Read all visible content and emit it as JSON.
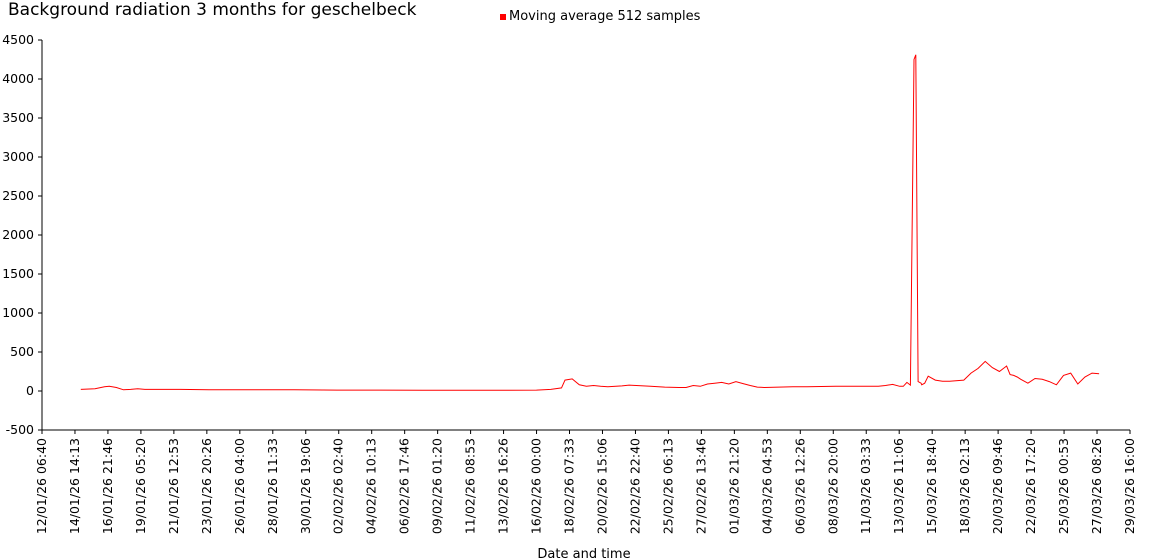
{
  "chart_data": {
    "type": "line",
    "title": "Background radiation 3 months for geschelbeck",
    "xlabel": "Date and time",
    "ylabel": "",
    "ylim": [
      -500,
      4500
    ],
    "yticks": [
      -500,
      0,
      500,
      1000,
      1500,
      2000,
      2500,
      3000,
      3500,
      4000,
      4500
    ],
    "xticks": [
      "12/01/26 06:40",
      "14/01/26 14:13",
      "16/01/26 21:46",
      "19/01/26 05:20",
      "21/01/26 12:53",
      "23/01/26 20:26",
      "26/01/26 04:00",
      "28/01/26 11:33",
      "30/01/26 19:06",
      "02/02/26 02:40",
      "04/02/26 10:13",
      "06/02/26 17:46",
      "09/02/26 01:20",
      "11/02/26 08:53",
      "13/02/26 16:26",
      "16/02/26 00:00",
      "18/02/26 07:33",
      "20/02/26 15:06",
      "22/02/26 22:40",
      "25/02/26 06:13",
      "27/02/26 13:46",
      "01/03/26 21:20",
      "04/03/26 04:53",
      "06/03/26 12:26",
      "08/03/26 20:00",
      "11/03/26 03:33",
      "13/03/26 11:06",
      "15/03/26 18:40",
      "18/03/26 02:13",
      "20/03/26 09:46",
      "22/03/26 17:20",
      "25/03/26 00:53",
      "27/03/26 08:26",
      "29/03/26 16:00"
    ],
    "grid": false,
    "legend_position": "top-center",
    "series": [
      {
        "name": "Moving average 512 samples",
        "color": "#ff0000",
        "x": [
          "15/01/26 00:00",
          "16/01/26 00:00",
          "16/01/26 16:00",
          "17/01/26 00:00",
          "17/01/26 12:00",
          "18/01/26 00:00",
          "18/01/26 12:00",
          "19/01/26 00:00",
          "19/01/26 12:00",
          "20/01/26 00:00",
          "22/01/26 00:00",
          "24/01/26 00:00",
          "27/01/26 00:00",
          "30/01/26 00:00",
          "02/02/26 00:00",
          "05/02/26 00:00",
          "08/02/26 00:00",
          "11/02/26 00:00",
          "14/02/26 00:00",
          "16/02/26 00:00",
          "17/02/26 00:00",
          "17/02/26 18:00",
          "18/02/26 00:00",
          "18/02/26 12:00",
          "19/02/26 00:00",
          "19/02/26 12:00",
          "20/02/26 00:00",
          "20/02/26 12:00",
          "21/02/26 00:00",
          "22/02/26 00:00",
          "22/02/26 12:00",
          "23/02/26 00:00",
          "24/02/26 00:00",
          "25/02/26 00:00",
          "26/02/26 00:00",
          "26/02/26 12:00",
          "27/02/26 00:00",
          "27/02/26 12:00",
          "28/02/26 00:00",
          "28/02/26 12:00",
          "01/03/26 00:00",
          "01/03/26 12:00",
          "02/03/26 00:00",
          "02/03/26 12:00",
          "03/03/26 00:00",
          "03/03/26 12:00",
          "04/03/26 00:00",
          "05/03/26 00:00",
          "06/03/26 00:00",
          "07/03/26 00:00",
          "09/03/26 00:00",
          "11/03/26 00:00",
          "12/03/26 00:00",
          "12/03/26 12:00",
          "13/03/26 00:00",
          "13/03/26 12:00",
          "13/03/26 18:00",
          "14/03/26 00:00",
          "14/03/26 06:00",
          "14/03/26 12:00",
          "14/03/26 15:00",
          "14/03/26 19:00",
          "15/03/26 00:00",
          "15/03/26 01:00",
          "15/03/26 06:00",
          "15/03/26 12:00",
          "16/03/26 00:00",
          "16/03/26 12:00",
          "17/03/26 00:00",
          "18/03/26 00:00",
          "18/03/26 12:00",
          "19/03/26 00:00",
          "19/03/26 12:00",
          "20/03/26 00:00",
          "20/03/26 12:00",
          "21/03/26 00:00",
          "21/03/26 06:00",
          "21/03/26 12:00",
          "21/03/26 18:00",
          "22/03/26 00:00",
          "22/03/26 12:00",
          "23/03/26 00:00",
          "23/03/26 12:00",
          "24/03/26 00:00",
          "24/03/26 12:00",
          "25/03/26 00:00",
          "25/03/26 12:00",
          "26/03/26 00:00",
          "26/03/26 12:00",
          "27/03/26 00:00",
          "27/03/26 12:00"
        ],
        "values": [
          20,
          30,
          55,
          60,
          45,
          15,
          20,
          30,
          20,
          20,
          20,
          15,
          15,
          15,
          12,
          12,
          10,
          10,
          10,
          12,
          20,
          40,
          140,
          155,
          80,
          60,
          70,
          60,
          55,
          65,
          75,
          70,
          60,
          50,
          45,
          45,
          70,
          60,
          90,
          100,
          110,
          90,
          120,
          95,
          70,
          50,
          45,
          50,
          55,
          55,
          60,
          60,
          60,
          70,
          85,
          60,
          60,
          110,
          75,
          4250,
          4310,
          120,
          100,
          80,
          100,
          190,
          140,
          125,
          125,
          140,
          230,
          290,
          380,
          300,
          250,
          320,
          210,
          200,
          180,
          150,
          100,
          160,
          150,
          120,
          80,
          200,
          230,
          90,
          180,
          230,
          220
        ]
      }
    ]
  }
}
